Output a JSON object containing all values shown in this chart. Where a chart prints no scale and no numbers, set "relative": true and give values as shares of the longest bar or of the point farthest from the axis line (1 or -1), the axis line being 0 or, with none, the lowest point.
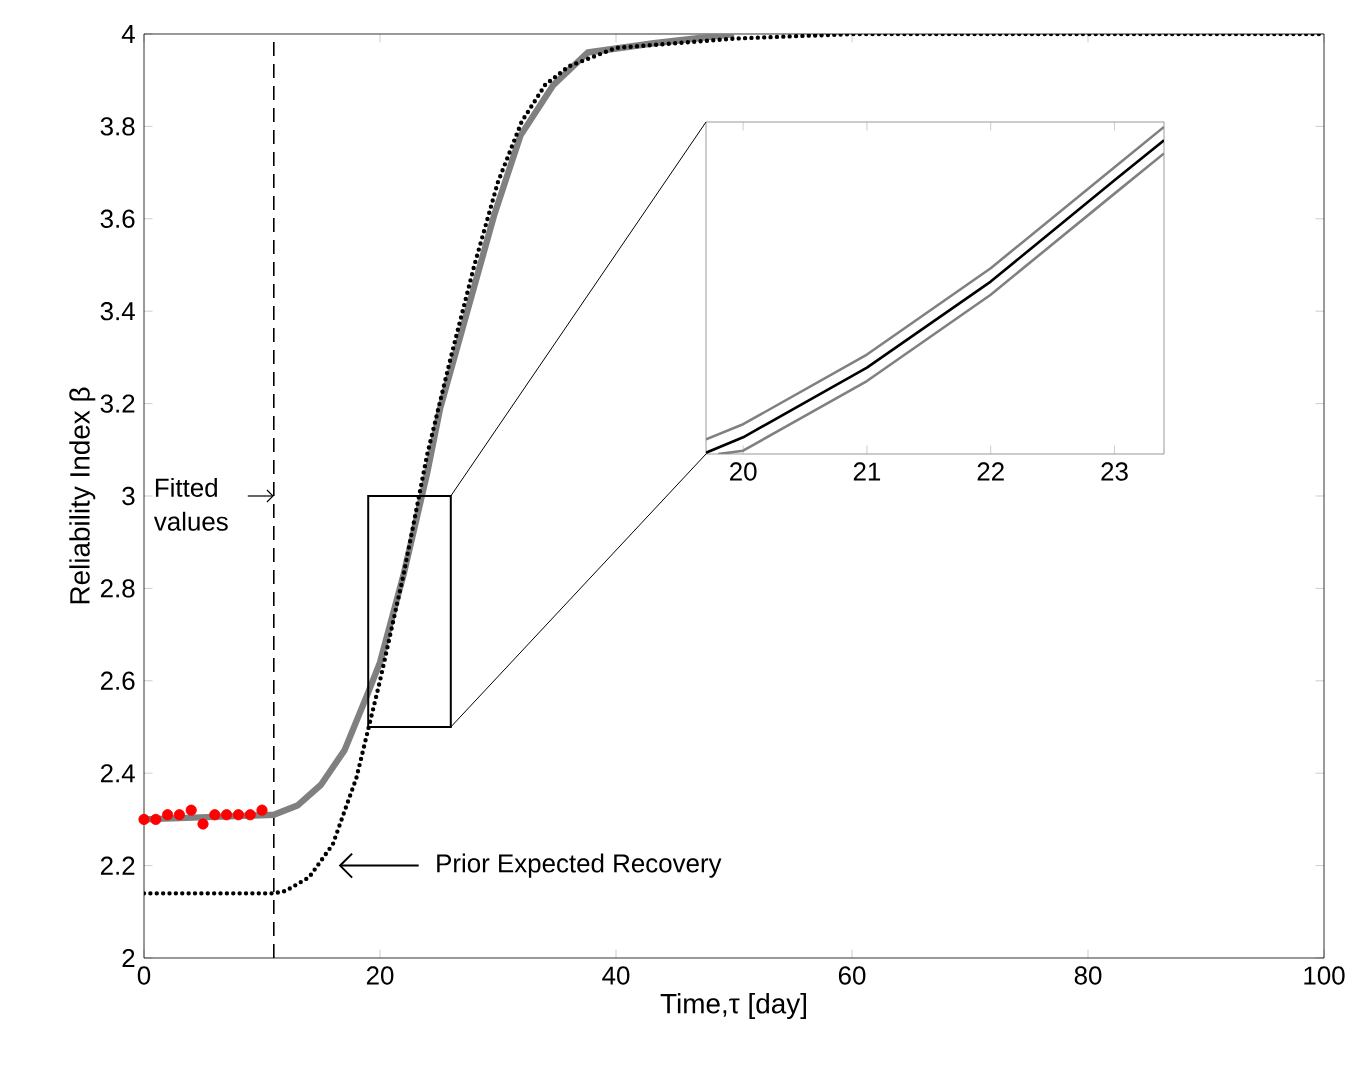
{
  "chart_data": [
    {
      "type": "line",
      "xlabel": "Time,τ [day]",
      "ylabel": "Reliability Index β",
      "xlim": [
        0,
        100
      ],
      "ylim": [
        2,
        4
      ],
      "xticks": [
        0,
        20,
        40,
        60,
        80,
        100
      ],
      "yticks": [
        2,
        2.2,
        2.4,
        2.6,
        2.8,
        3,
        3.2,
        3.4,
        3.6,
        3.8,
        4
      ],
      "grid": false,
      "series": [
        {
          "type": "line",
          "color": "#808080",
          "x": [
            0,
            11,
            13,
            15,
            17,
            19,
            20,
            22,
            24,
            25.1,
            27.4,
            29.7,
            31.9,
            34.7,
            37.6,
            43.2,
            50
          ],
          "values": [
            2.3,
            2.31,
            2.33,
            2.375,
            2.45,
            2.575,
            2.64,
            2.83,
            3.05,
            3.19,
            3.4,
            3.61,
            3.78,
            3.89,
            3.96,
            3.98,
            4.0
          ]
        },
        {
          "type": "line",
          "color": "#000000",
          "line_style": "dotted",
          "x": [
            0,
            11,
            12,
            14,
            16,
            18,
            20,
            22,
            24,
            26,
            28,
            30,
            32,
            34,
            36,
            40,
            45,
            50,
            60,
            100
          ],
          "values": [
            2.14,
            2.14,
            2.145,
            2.175,
            2.246,
            2.39,
            2.6,
            2.83,
            3.09,
            3.3,
            3.5,
            3.68,
            3.81,
            3.89,
            3.93,
            3.97,
            3.98,
            3.99,
            4.0,
            4.0
          ]
        },
        {
          "type": "scatter",
          "color": "#ff0000",
          "marker": "circle",
          "x": [
            0,
            1,
            2,
            3,
            4,
            5,
            6,
            7,
            8,
            9,
            10
          ],
          "values": [
            2.3,
            2.3,
            2.31,
            2.31,
            2.32,
            2.29,
            2.31,
            2.31,
            2.31,
            2.31,
            2.32
          ]
        }
      ],
      "ref_lines": [
        {
          "axis": "x",
          "value": 11,
          "line_style": "dashed",
          "color": "#000000"
        }
      ],
      "annotations": [
        "Fitted values",
        "Prior Expected Recovery"
      ]
    },
    {
      "type": "line",
      "relative": true,
      "xlim": [
        19.7,
        23.4
      ],
      "xticks": [
        20,
        21,
        22,
        23
      ],
      "grid": false,
      "series": [
        {
          "color": "#808080",
          "x": [
            19.7,
            20,
            21,
            22,
            23,
            23.4
          ],
          "values": [
            0.045,
            0.091,
            0.304,
            0.568,
            0.877,
            1.0
          ]
        },
        {
          "color": "#000000",
          "x": [
            19.7,
            20,
            21,
            22,
            23,
            23.4
          ],
          "values": [
            0.004,
            0.051,
            0.264,
            0.527,
            0.837,
            0.959
          ]
        },
        {
          "color": "#808080",
          "x": [
            19.8,
            20,
            21,
            22,
            23,
            23.4
          ],
          "values": [
            0.0,
            0.01,
            0.223,
            0.487,
            0.796,
            0.919
          ]
        }
      ]
    }
  ]
}
